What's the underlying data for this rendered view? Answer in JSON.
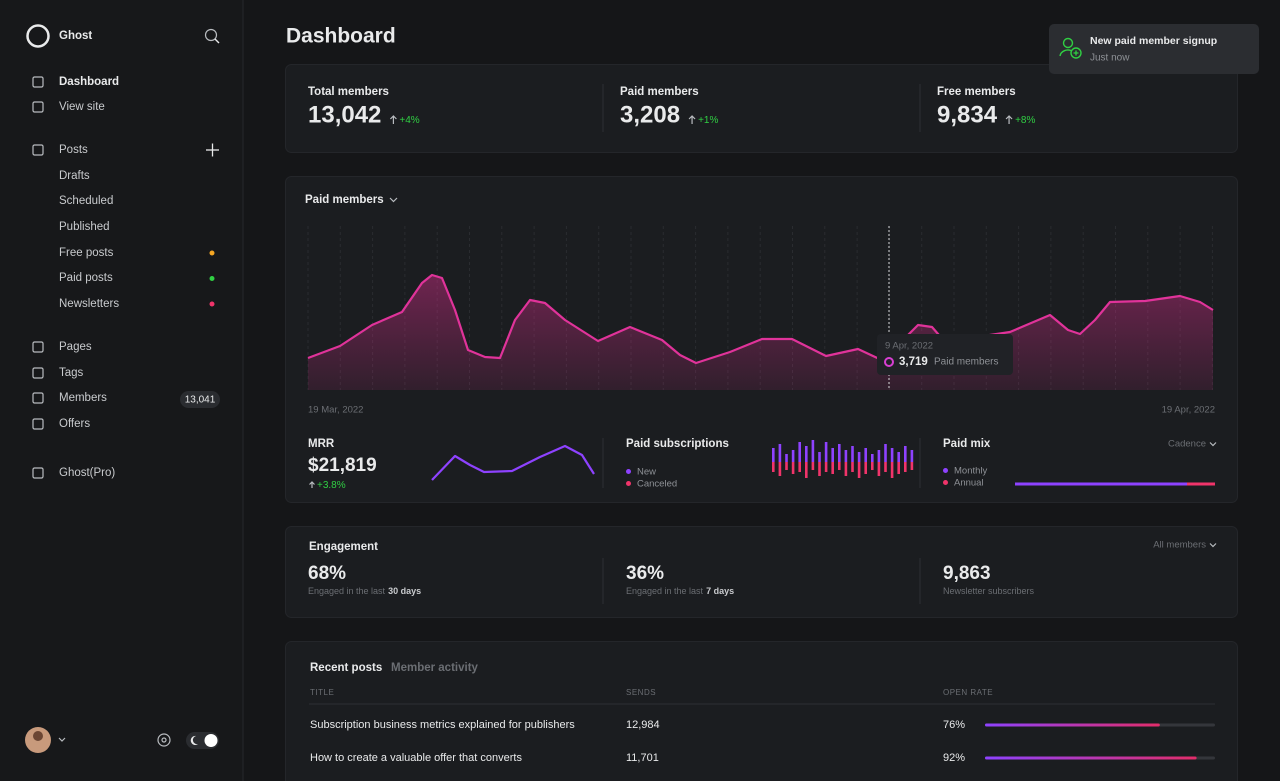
{
  "sidebar": {
    "brand": "Ghost",
    "nav": [
      "Dashboard",
      "View site",
      "Posts",
      "Drafts",
      "Scheduled",
      "Published",
      "Free posts",
      "Paid posts",
      "Newsletters",
      "Pages",
      "Tags",
      "Members",
      "Offers",
      "Ghost(Pro)"
    ],
    "members_badge": "13,041"
  },
  "header": {
    "title": "Dashboard"
  },
  "toast": {
    "title": "New paid member signup",
    "subtitle": "Just now"
  },
  "stats": [
    {
      "label": "Total members",
      "value": "13,042",
      "change": "+4%"
    },
    {
      "label": "Paid members",
      "value": "3,208",
      "change": "+1%"
    },
    {
      "label": "Free members",
      "value": "9,834",
      "change": "+8%"
    }
  ],
  "chart": {
    "title": "Paid members",
    "start_date": "19 Mar, 2022",
    "end_date": "19 Apr, 2022",
    "tooltip": {
      "date": "9 Apr, 2022",
      "value": "3,719",
      "label": "Paid members"
    }
  },
  "mrr": {
    "label": "MRR",
    "value": "$21,819",
    "change": "+3.8%"
  },
  "subscriptions": {
    "title": "Paid subscriptions",
    "legend": [
      "New",
      "Canceled"
    ]
  },
  "mix": {
    "title": "Paid mix",
    "filter": "Cadence",
    "legend": [
      "Monthly",
      "Annual"
    ]
  },
  "engagement": {
    "title": "Engagement",
    "filter": "All members",
    "items": [
      {
        "value": "68%",
        "text": "Engaged in the last",
        "bold": "30 days"
      },
      {
        "value": "36%",
        "text": "Engaged in the last",
        "bold": "7 days"
      },
      {
        "value": "9,863",
        "text": "Newsletter subscribers"
      }
    ]
  },
  "posts": {
    "tabs": [
      "Recent posts",
      "Member activity"
    ],
    "columns": [
      "TITLE",
      "SENDS",
      "OPEN RATE"
    ],
    "rows": [
      [
        "Subscription business metrics explained for publishers",
        "12,984",
        "76%"
      ],
      [
        "How to create a valuable offer that converts",
        "11,701",
        "92%"
      ]
    ]
  }
}
